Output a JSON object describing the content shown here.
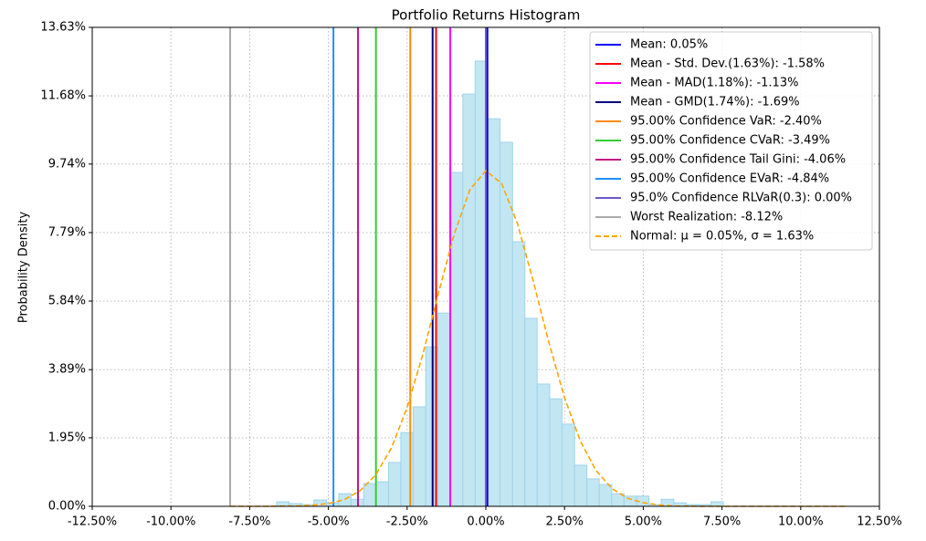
{
  "chart_data": {
    "type": "histogram",
    "title": "Portfolio Returns Histogram",
    "y_label": "Probability Density",
    "bins": [
      -6.64,
      -6.25,
      -5.85,
      -5.46,
      -5.06,
      -4.67,
      -4.28,
      -3.88,
      -3.49,
      -3.09,
      -2.7,
      -2.31,
      -1.91,
      -1.52,
      -1.12,
      -0.73,
      -0.34,
      0.06,
      0.45,
      0.85,
      1.24,
      1.63,
      2.03,
      2.42,
      2.82,
      3.21,
      3.6,
      4.0,
      4.39,
      4.79,
      5.18,
      5.57,
      5.97,
      6.36,
      6.76,
      7.15,
      7.54
    ],
    "values": [
      0.13,
      0.08,
      0.05,
      0.18,
      0.1,
      0.36,
      0.2,
      0.65,
      0.7,
      1.25,
      2.1,
      2.83,
      4.54,
      5.5,
      9.5,
      11.73,
      12.67,
      11.03,
      10.36,
      7.53,
      5.35,
      3.48,
      3.06,
      2.34,
      1.17,
      0.78,
      0.62,
      0.36,
      0.29,
      0.29,
      0.05,
      0.2,
      0.1,
      0.05,
      0.05,
      0.13
    ],
    "color": "#c3e6f3",
    "edge_color": "#9ed4ea",
    "series": [
      {
        "name": "Mean: 0.05%",
        "color": "#0000ff",
        "value": 0.05
      },
      {
        "name": "Mean - Std. Dev.(1.63%): -1.58%",
        "color": "#ff0000",
        "value": -1.58
      },
      {
        "name": "Mean - MAD(1.18%): -1.13%",
        "color": "#ff00ff",
        "value": -1.13
      },
      {
        "name": "Mean - GMD(1.74%): -1.69%",
        "color": "#000080",
        "value": -1.69
      },
      {
        "name": "95.00% Confidence VaR: -2.40%",
        "color": "#ff8c00",
        "value": -2.4
      },
      {
        "name": "95.00% Confidence CVaR: -3.49%",
        "color": "#32cd32",
        "value": -3.49
      },
      {
        "name": "95.00% Confidence Tail Gini: -4.06%",
        "color": "#c71585",
        "value": -4.06
      },
      {
        "name": "95.00% Confidence EVaR: -4.84%",
        "color": "#1e90ff",
        "value": -4.84
      },
      {
        "name": "95.0% Confidence RLVaR(0.3): 0.00%",
        "color": "#6a5acd",
        "value": 0.0
      },
      {
        "name": "Worst Realization: -8.12%",
        "color": "#a9a9a9",
        "value": -8.12
      }
    ],
    "normal": {
      "name": "Normal: μ = 0.05%, σ = 1.63%",
      "color": "#ffa500",
      "x": [
        -8.12,
        -7,
        -6,
        -5.5,
        -5,
        -4.5,
        -4,
        -3.5,
        -3,
        -2.5,
        -2,
        -1.5,
        -1,
        -0.5,
        0,
        0.5,
        1,
        1.5,
        2,
        2.5,
        3,
        3.5,
        4,
        4.5,
        5,
        5.5,
        6,
        7,
        8,
        9,
        10,
        11.4
      ],
      "values": [
        0,
        0,
        0.01,
        0.03,
        0.08,
        0.19,
        0.44,
        0.89,
        1.66,
        2.81,
        4.33,
        6.08,
        7.76,
        9.02,
        9.55,
        9.19,
        8.06,
        6.43,
        4.67,
        3.09,
        1.86,
        1.02,
        0.51,
        0.23,
        0.1,
        0.04,
        0.01,
        0,
        0,
        0,
        0,
        0
      ]
    },
    "xlim": [
      -12.5,
      12.5
    ],
    "xticks": [
      {
        "value": -12.5,
        "label": "-12.50%"
      },
      {
        "value": -10,
        "label": "-10.00%"
      },
      {
        "value": -7.5,
        "label": "-7.50%"
      },
      {
        "value": -5,
        "label": "-5.00%"
      },
      {
        "value": -2.5,
        "label": "-2.50%"
      },
      {
        "value": 0,
        "label": "0.00%"
      },
      {
        "value": 2.5,
        "label": "2.50%"
      },
      {
        "value": 5,
        "label": "5.00%"
      },
      {
        "value": 7.5,
        "label": "7.50%"
      },
      {
        "value": 10,
        "label": "10.00%"
      },
      {
        "value": 12.5,
        "label": "12.50%"
      }
    ],
    "ylim": [
      0,
      13.63
    ],
    "yticks": [
      {
        "value": 0,
        "label": "0.00%"
      },
      {
        "value": 1.95,
        "label": "1.95%"
      },
      {
        "value": 3.89,
        "label": "3.89%"
      },
      {
        "value": 5.84,
        "label": "5.84%"
      },
      {
        "value": 7.79,
        "label": "7.79%"
      },
      {
        "value": 9.74,
        "label": "9.74%"
      },
      {
        "value": 11.68,
        "label": "11.68%"
      },
      {
        "value": 13.63,
        "label": "13.63%"
      }
    ],
    "grid": true,
    "legend": "upper right"
  }
}
